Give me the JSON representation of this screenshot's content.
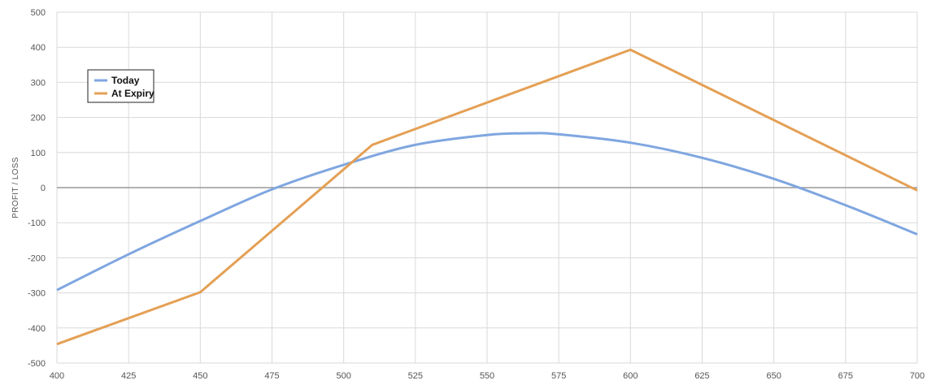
{
  "chart_data": {
    "type": "line",
    "title": "",
    "xlabel": "",
    "ylabel": "PROFIT / LOSS",
    "xlim": [
      400,
      700
    ],
    "ylim": [
      -500,
      500
    ],
    "x_ticks": [
      400,
      425,
      450,
      475,
      500,
      525,
      550,
      575,
      600,
      625,
      650,
      675,
      700
    ],
    "y_ticks": [
      -500,
      -400,
      -300,
      -200,
      -100,
      0,
      100,
      200,
      300,
      400,
      500
    ],
    "grid": true,
    "legend_position": "top-left",
    "series": [
      {
        "name": "Today",
        "color": "#7fa6e0",
        "x": [
          400,
          425,
          450,
          475,
          500,
          525,
          550,
          565,
          575,
          600,
          625,
          650,
          675,
          700
        ],
        "y": [
          -292,
          -190,
          -95,
          -5,
          65,
          122,
          150,
          155,
          152,
          128,
          85,
          25,
          -50,
          -133
        ]
      },
      {
        "name": "At Expiry",
        "color": "#e4a055",
        "x": [
          400,
          450,
          510,
          600,
          700
        ],
        "y": [
          -446,
          -298,
          122,
          393,
          -8
        ]
      }
    ],
    "zero_line_color": "#999999",
    "grid_color": "#d9d9d9"
  }
}
